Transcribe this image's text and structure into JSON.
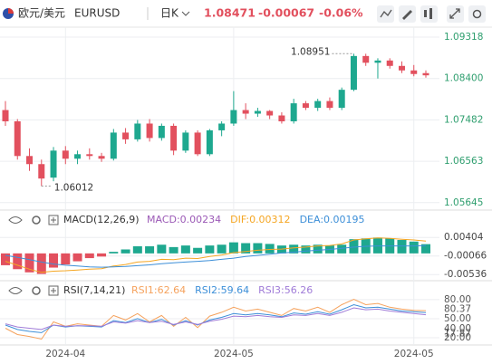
{
  "header": {
    "pair": "欧元/美元",
    "symbol": "EURUSD",
    "period": "日K",
    "price": "1.08471",
    "change": "-0.00067",
    "change_pct": "-0.06%"
  },
  "chart_data": [
    {
      "type": "candlestick",
      "categories": [
        null,
        null,
        null,
        null,
        null,
        "2024-04",
        null,
        null,
        null,
        null,
        null,
        null,
        null,
        null,
        null,
        null,
        null,
        null,
        null,
        "2024-05",
        null,
        null,
        null,
        null,
        null,
        null,
        null,
        null,
        null,
        null,
        null,
        null,
        null,
        null,
        "2024-05",
        null
      ],
      "open": [
        1.077,
        1.0745,
        1.0668,
        1.065,
        1.062,
        1.068,
        1.0662,
        1.0672,
        1.0668,
        1.0662,
        1.072,
        1.0705,
        1.074,
        1.0708,
        1.0735,
        1.068,
        1.072,
        1.0672,
        1.0725,
        1.074,
        1.077,
        1.0762,
        1.0768,
        1.0758,
        1.0745,
        1.0785,
        1.0775,
        1.079,
        1.0775,
        1.0815,
        1.089,
        1.0875,
        1.088,
        1.0868,
        1.0858,
        1.0852
      ],
      "high": [
        1.079,
        1.075,
        1.0685,
        1.066,
        1.0688,
        1.069,
        1.068,
        1.0685,
        1.0675,
        1.0728,
        1.073,
        1.0748,
        1.075,
        1.074,
        1.074,
        1.0725,
        1.0725,
        1.0728,
        1.0745,
        1.0812,
        1.0785,
        1.0775,
        1.077,
        1.0765,
        1.0795,
        1.079,
        1.0795,
        1.0798,
        1.082,
        1.08951,
        1.0895,
        1.0885,
        1.0885,
        1.0878,
        1.087,
        1.0858
      ],
      "low": [
        1.0735,
        1.066,
        1.0635,
        1.06012,
        1.0612,
        1.065,
        1.065,
        1.066,
        1.0655,
        1.0658,
        1.0695,
        1.07,
        1.07,
        1.0702,
        1.067,
        1.0675,
        1.0668,
        1.0668,
        1.0712,
        1.0735,
        1.075,
        1.0755,
        1.075,
        1.074,
        1.074,
        1.077,
        1.0768,
        1.077,
        1.077,
        1.0812,
        1.0868,
        1.084,
        1.0862,
        1.0852,
        1.0845,
        1.0842
      ],
      "close": [
        1.0745,
        1.0668,
        1.065,
        1.0618,
        1.068,
        1.0662,
        1.0672,
        1.0668,
        1.0662,
        1.072,
        1.0705,
        1.074,
        1.0708,
        1.0735,
        1.068,
        1.072,
        1.0672,
        1.0725,
        1.074,
        1.077,
        1.0762,
        1.0768,
        1.0758,
        1.0745,
        1.0785,
        1.0775,
        1.079,
        1.0775,
        1.0815,
        1.089,
        1.0875,
        1.088,
        1.0868,
        1.0858,
        1.085,
        1.08471
      ],
      "up_color": "#1ea88f",
      "down_color": "#e2505e",
      "ylim": [
        1.0548,
        1.0954
      ],
      "yticks": [
        1.09318,
        {
          "value": 1.084,
          "label": "1.08400"
        },
        1.07482,
        1.06563,
        1.05645
      ],
      "grid": true
    },
    {
      "type": "macd",
      "title": "MACD(12,26,9)",
      "ylim": [
        -0.006,
        0.0057
      ],
      "yticks": [
        0.00404,
        -0.00066,
        -0.00536
      ],
      "series": [
        {
          "name": "MACD:0.00234",
          "kind": "bar",
          "color": "#9b59b6",
          "up_color": "#1ea88f",
          "down_color": "#e2505e",
          "values": [
            -0.003,
            -0.004,
            -0.0048,
            -0.0052,
            -0.0036,
            -0.0028,
            -0.002,
            -0.0012,
            -0.0008,
            0.0004,
            0.001,
            0.0018,
            0.0018,
            0.0022,
            0.0016,
            0.002,
            0.0014,
            0.002,
            0.0022,
            0.0028,
            0.0026,
            0.0026,
            0.0024,
            0.002,
            0.0022,
            0.002,
            0.0022,
            0.002,
            0.0022,
            0.0036,
            0.0038,
            0.004,
            0.0038,
            0.0034,
            0.003,
            0.00234
          ]
        },
        {
          "name": "DIF:0.00312",
          "kind": "line",
          "color": "#f5a623",
          "values": [
            -0.002,
            -0.003,
            -0.004,
            -0.0048,
            -0.0045,
            -0.0044,
            -0.0042,
            -0.004,
            -0.0039,
            -0.0032,
            -0.0028,
            -0.0022,
            -0.002,
            -0.0015,
            -0.0016,
            -0.0012,
            -0.0013,
            -0.0008,
            -0.0004,
            0.0002,
            0.0005,
            0.0008,
            0.001,
            0.0011,
            0.0014,
            0.0016,
            0.0019,
            0.002,
            0.0024,
            0.0034,
            0.0037,
            0.0039,
            0.0038,
            0.0036,
            0.0034,
            0.00312
          ]
        },
        {
          "name": "DEA:0.00195",
          "kind": "line",
          "color": "#3d8fd8",
          "values": [
            -0.0005,
            -0.001,
            -0.0016,
            -0.0022,
            -0.0027,
            -0.003,
            -0.0032,
            -0.0034,
            -0.0035,
            -0.0034,
            -0.0033,
            -0.0031,
            -0.0029,
            -0.0026,
            -0.0024,
            -0.0022,
            -0.002,
            -0.0018,
            -0.0015,
            -0.0012,
            -0.0008,
            -0.0005,
            -0.0002,
            0.0001,
            0.0003,
            0.0006,
            0.0008,
            0.001,
            0.0013,
            0.0016,
            0.0018,
            0.0019,
            0.0019,
            0.0019,
            0.0019,
            0.00195
          ]
        }
      ]
    },
    {
      "type": "rsi",
      "title": "RSI(7,14,21)",
      "ylim": [
        10,
        87
      ],
      "yticks": [
        {
          "value": 80,
          "label": "80.00"
        },
        {
          "value": 50,
          "label": "50.00"
        },
        {
          "value": 20,
          "label": "20.00"
        }
      ],
      "extremes": [
        {
          "value": 80.37,
          "label": "80.37"
        },
        {
          "value": 40,
          "label": "40.00"
        },
        {
          "value": 17.87,
          "label": "17.87"
        }
      ],
      "series": [
        {
          "name": "RSI1:62.64",
          "color": "#f5a25d",
          "values": [
            35,
            25,
            22,
            17.87,
            45,
            38,
            42,
            40,
            38,
            55,
            48,
            58,
            45,
            55,
            38,
            52,
            36,
            54,
            60,
            68,
            62,
            65,
            60,
            55,
            66,
            62,
            68,
            60,
            72,
            80.37,
            72,
            74,
            68,
            65,
            63,
            62.64
          ]
        },
        {
          "name": "RSI2:59.64",
          "color": "#3d8fd8",
          "values": [
            40,
            33,
            30,
            28,
            40,
            37,
            39,
            38,
            37,
            47,
            44,
            50,
            44,
            49,
            40,
            47,
            40,
            48,
            52,
            58,
            56,
            58,
            56,
            53,
            59,
            57,
            61,
            57,
            64,
            72,
            67,
            68,
            65,
            62,
            61,
            59.64
          ]
        },
        {
          "name": "RSI3:56.26",
          "color": "#a07cd8",
          "values": [
            42,
            37,
            35,
            33,
            40,
            38,
            39,
            39,
            38,
            45,
            43,
            47,
            44,
            46,
            41,
            45,
            41,
            46,
            49,
            54,
            53,
            55,
            53,
            52,
            56,
            55,
            58,
            55,
            60,
            67,
            64,
            65,
            62,
            60,
            58,
            56.26
          ]
        }
      ]
    }
  ]
}
